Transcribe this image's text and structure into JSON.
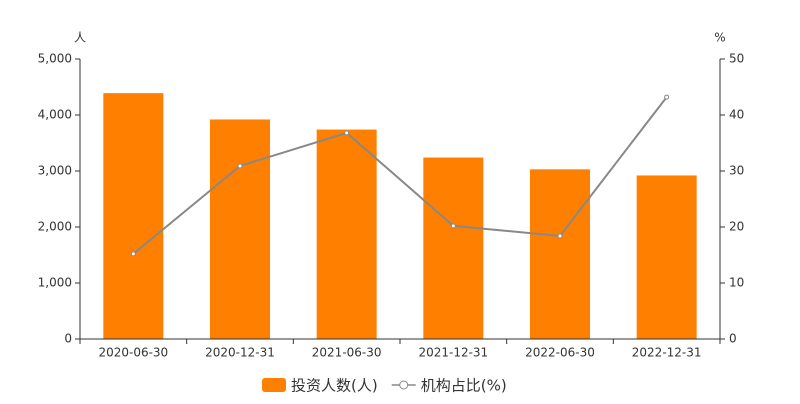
{
  "chart_data": {
    "type": "bar",
    "y_unit": "人",
    "y2_unit": "%",
    "categories": [
      "2020-06-30",
      "2020-12-31",
      "2021-06-30",
      "2021-12-31",
      "2022-06-30",
      "2022-12-31"
    ],
    "series": [
      {
        "name": "投资人数(人)",
        "type": "bar",
        "color": "#ff7f00",
        "values": [
          4390,
          3920,
          3740,
          3240,
          3030,
          2920
        ]
      },
      {
        "name": "机构占比(%)",
        "type": "line",
        "axis": "y2",
        "color": "#888888",
        "values": [
          15.2,
          30.9,
          36.8,
          20.2,
          18.4,
          43.2
        ]
      }
    ],
    "ylim": [
      0,
      5000
    ],
    "yticks": [
      0,
      {
        "value": 1000,
        "label": "1,000"
      },
      {
        "value": 2000,
        "label": "2,000"
      },
      {
        "value": 3000,
        "label": "3,000"
      },
      {
        "value": 4000,
        "label": "4,000"
      },
      {
        "value": 5000,
        "label": "5,000"
      }
    ],
    "y2lim": [
      0,
      50
    ],
    "y2ticks": [
      0,
      10,
      20,
      30,
      40,
      50
    ],
    "grid": false
  }
}
